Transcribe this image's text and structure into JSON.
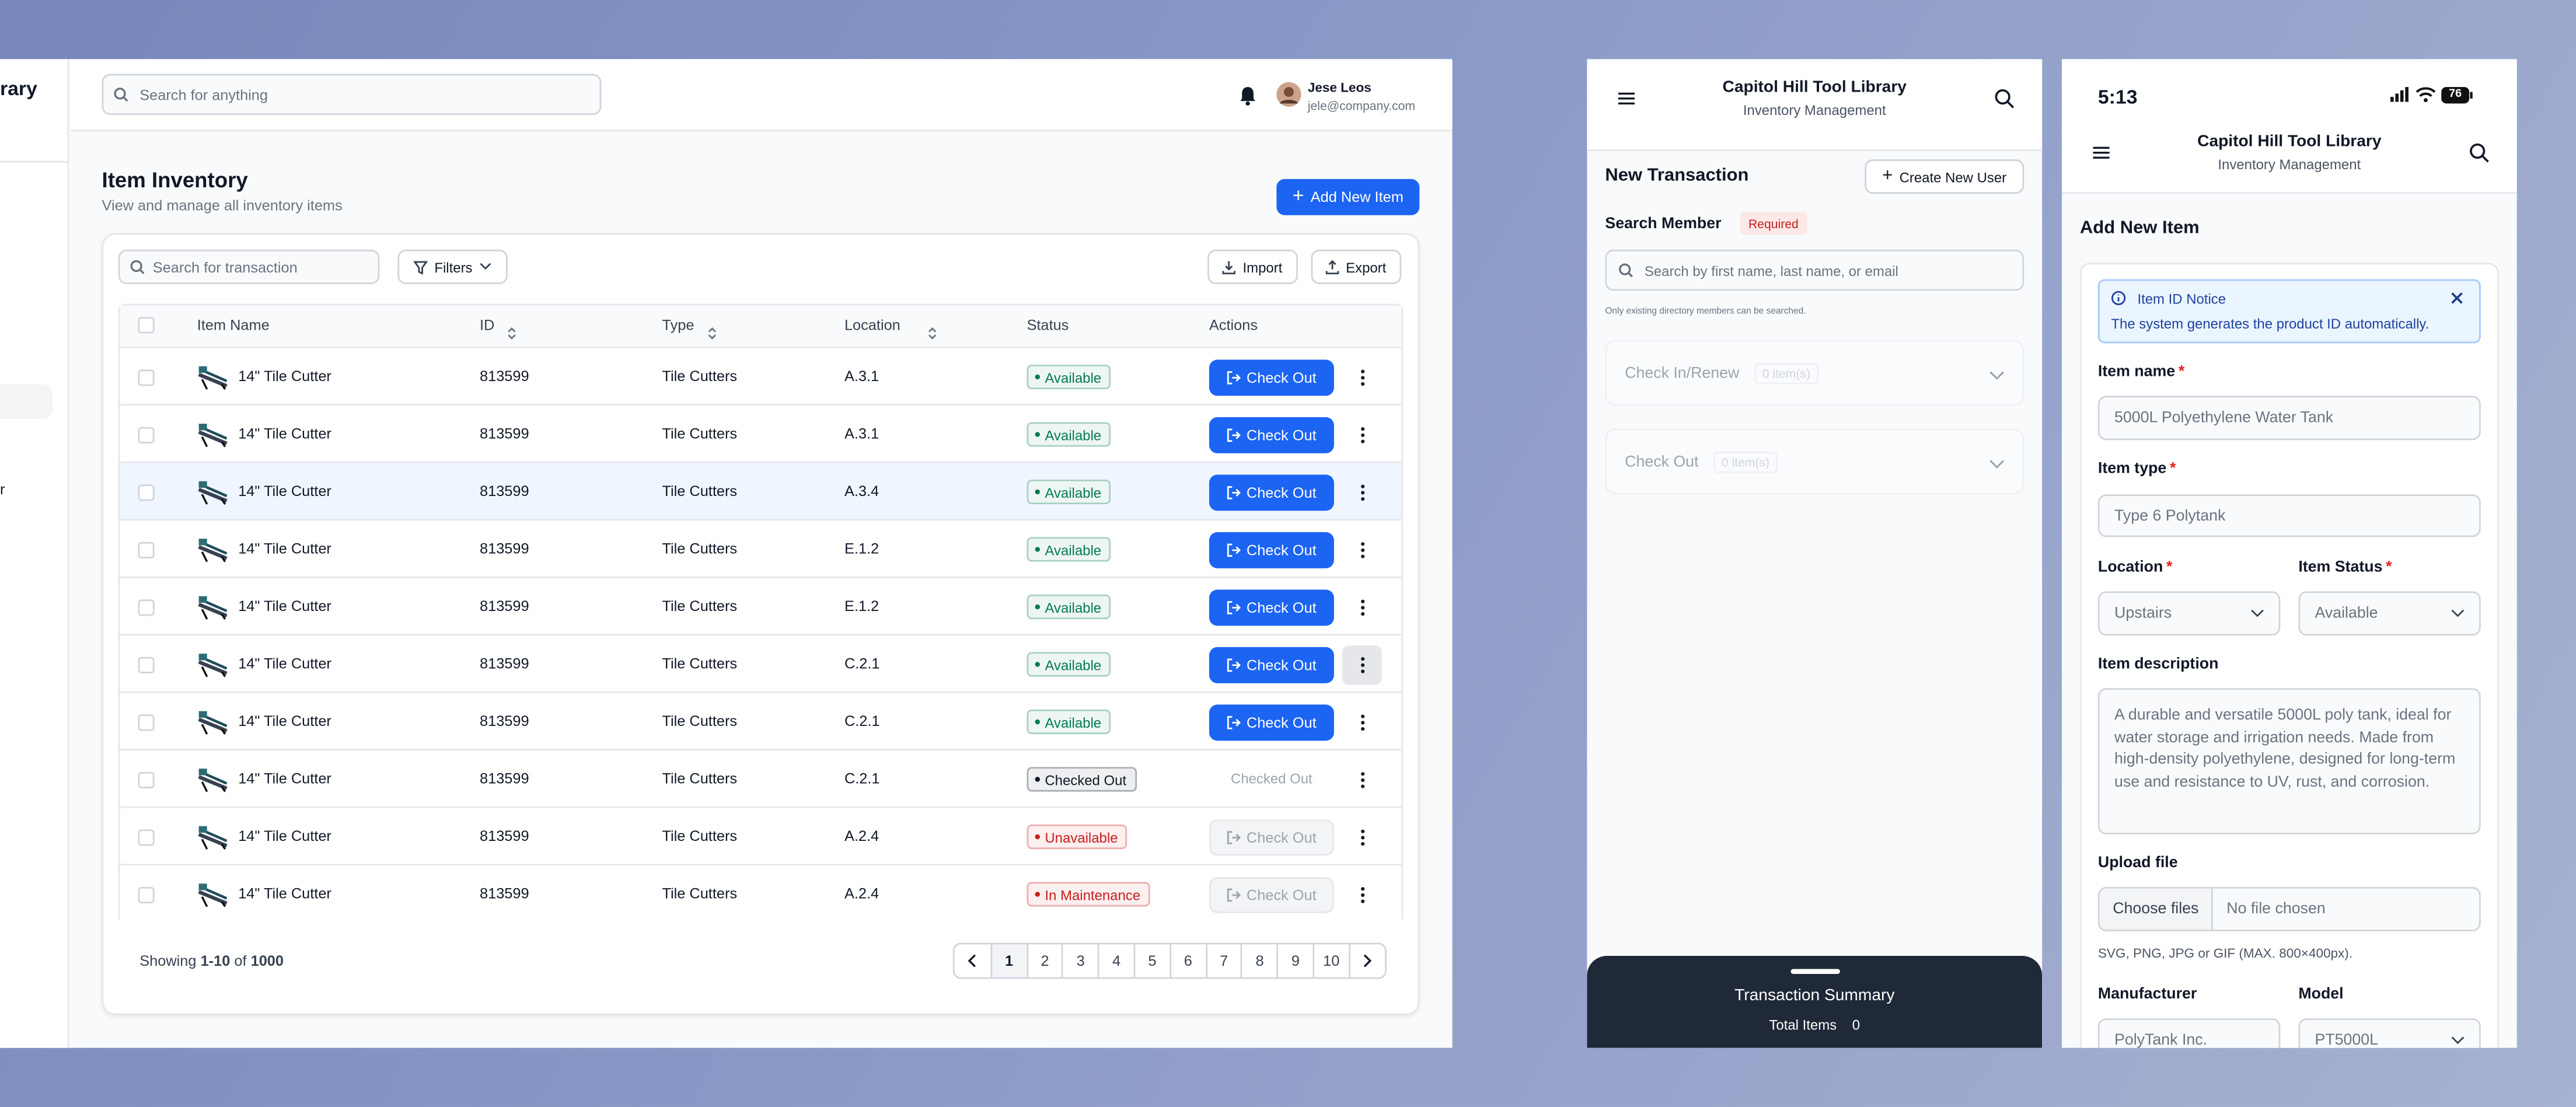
{
  "sidebar": {
    "brand_fragment": "rary",
    "item_fragment": "r"
  },
  "topbar": {
    "search_placeholder": "Search for anything",
    "user": {
      "name": "Jese Leos",
      "email": "jele@company.com"
    }
  },
  "inventory": {
    "title": "Item Inventory",
    "subtitle": "View and manage all inventory items",
    "add_button": "Add New Item",
    "search_placeholder": "Search for transaction",
    "filters": "Filters",
    "import": "Import",
    "export": "Export",
    "columns": [
      "Item Name",
      "ID",
      "Type",
      "Location",
      "Status",
      "Actions"
    ],
    "rows": [
      {
        "name": "14\" Tile Cutter",
        "id": "813599",
        "type": "Tile Cutters",
        "location": "A.3.1",
        "status": "Available",
        "status_color": "#057a55",
        "action": "Check Out"
      },
      {
        "name": "14\" Tile Cutter",
        "id": "813599",
        "type": "Tile Cutters",
        "location": "A.3.1",
        "status": "Available",
        "status_color": "#057a55",
        "action": "Check Out"
      },
      {
        "name": "14\" Tile Cutter",
        "id": "813599",
        "type": "Tile Cutters",
        "location": "A.3.4",
        "status": "Available",
        "status_color": "#057a55",
        "action": "Check Out"
      },
      {
        "name": "14\" Tile Cutter",
        "id": "813599",
        "type": "Tile Cutters",
        "location": "E.1.2",
        "status": "Available",
        "status_color": "#057a55",
        "action": "Check Out"
      },
      {
        "name": "14\" Tile Cutter",
        "id": "813599",
        "type": "Tile Cutters",
        "location": "E.1.2",
        "status": "Available",
        "status_color": "#057a55",
        "action": "Check Out"
      },
      {
        "name": "14\" Tile Cutter",
        "id": "813599",
        "type": "Tile Cutters",
        "location": "C.2.1",
        "status": "Available",
        "status_color": "#057a55",
        "action": "Check Out"
      },
      {
        "name": "14\" Tile Cutter",
        "id": "813599",
        "type": "Tile Cutters",
        "location": "C.2.1",
        "status": "Available",
        "status_color": "#057a55",
        "action": "Check Out"
      },
      {
        "name": "14\" Tile Cutter",
        "id": "813599",
        "type": "Tile Cutters",
        "location": "C.2.1",
        "status": "Checked Out",
        "status_color": "#111827",
        "action": "Checked Out"
      },
      {
        "name": "14\" Tile Cutter",
        "id": "813599",
        "type": "Tile Cutters",
        "location": "A.2.4",
        "status": "Unavailable",
        "status_color": "#c81e1e",
        "action": "Check Out"
      },
      {
        "name": "14\" Tile Cutter",
        "id": "813599",
        "type": "Tile Cutters",
        "location": "A.2.4",
        "status": "In Maintenance",
        "status_color": "#c81e1e",
        "action": "Check Out"
      }
    ],
    "footer": {
      "showing": "Showing",
      "range": "1-10",
      "of": "of",
      "total": "1000"
    },
    "pages": [
      "1",
      "2",
      "3",
      "4",
      "5",
      "6",
      "7",
      "8",
      "9",
      "10"
    ]
  },
  "app": {
    "title": "Capitol Hill Tool Library",
    "subtitle": "Inventory Management"
  },
  "transaction": {
    "title": "New Transaction",
    "create_user": "Create New User",
    "search_label": "Search Member",
    "required_badge": "Required",
    "search_placeholder": "Search by first name, last name, or email",
    "note": "Only existing directory members can be searched.",
    "panels": [
      {
        "label": "Check In/Renew",
        "count": "0 item(s)"
      },
      {
        "label": "Check Out",
        "count": "0 item(s)"
      }
    ],
    "summary": {
      "title": "Transaction Summary",
      "total_label": "Total Items",
      "total": "0"
    }
  },
  "add_item": {
    "time": "5:13",
    "battery": "76",
    "title": "Add New Item",
    "notice_title": "Item ID Notice",
    "notice_text": "The system generates the product ID automatically.",
    "required_mark": "*",
    "item_name_label": "Item name",
    "item_name": "5000L Polyethylene Water Tank",
    "item_type_label": "Item type",
    "item_type": "Type 6 Polytank",
    "location_label": "Location",
    "location": "Upstairs",
    "status_label": "Item Status",
    "status": "Available",
    "description_label": "Item description",
    "description": "A durable and versatile 5000L poly tank, ideal for water storage and irrigation needs. Made from high-density polyethylene, designed for long-term use and resistance to UV, rust, and corrosion.",
    "upload_label": "Upload file",
    "choose_files": "Choose files",
    "no_file": "No file chosen",
    "upload_hint": "SVG, PNG, JPG or GIF (MAX. 800×400px).",
    "manufacturer_label": "Manufacturer",
    "manufacturer": "PolyTank Inc.",
    "model_label": "Model",
    "model": "PT5000L"
  }
}
